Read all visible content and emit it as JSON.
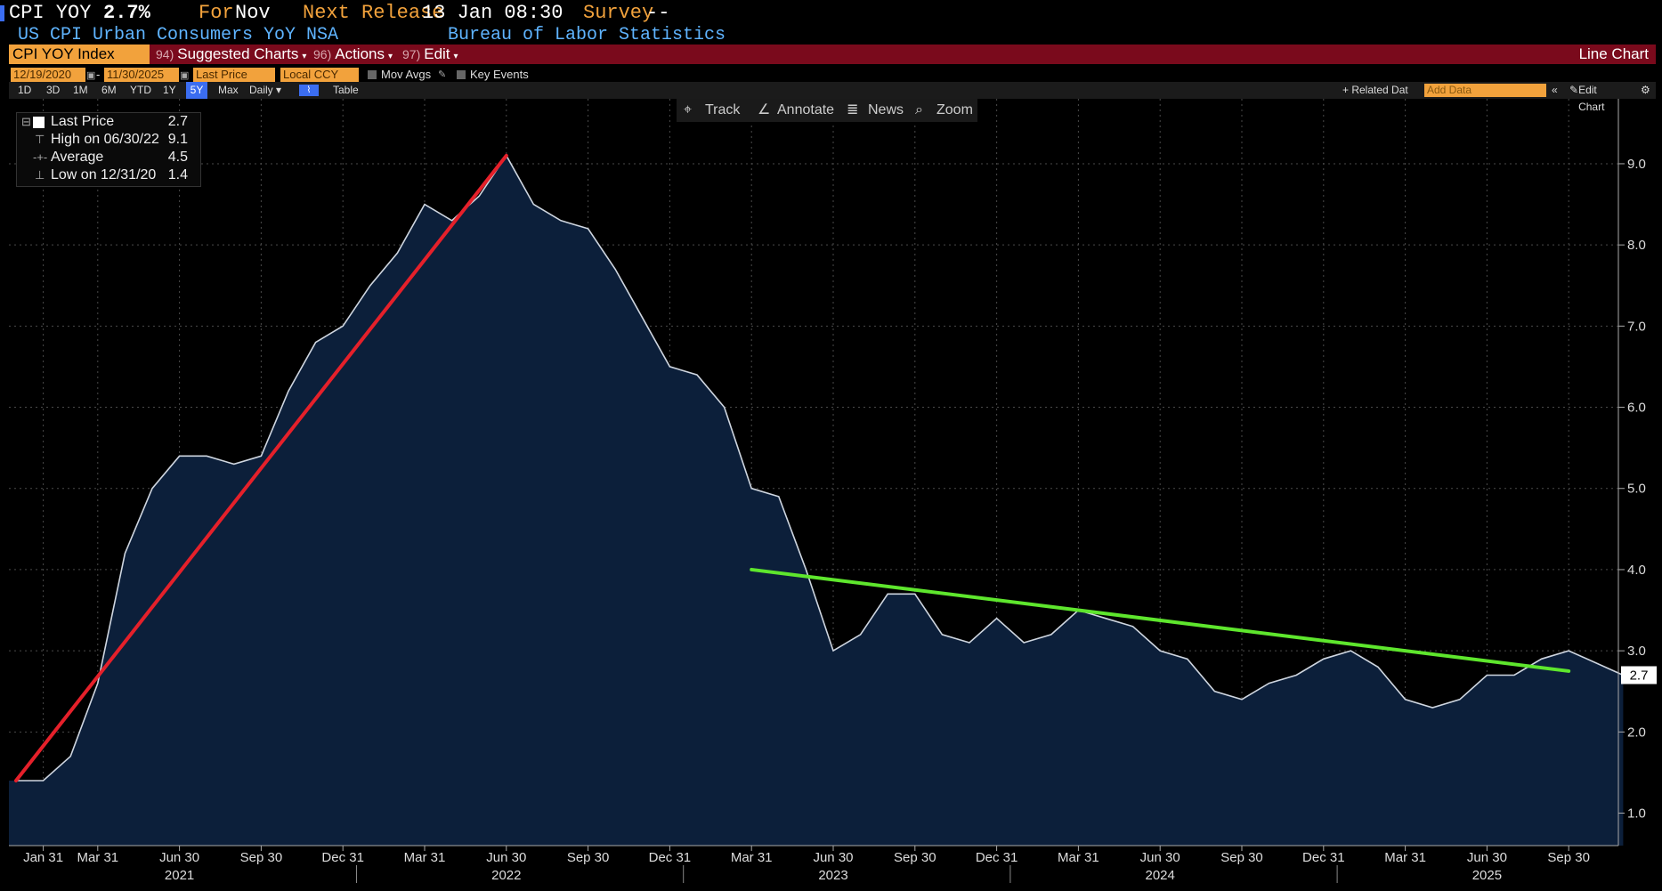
{
  "header": {
    "ticker": "CPI YOY",
    "value": "2.7%",
    "for_label": "For",
    "for_value": "Nov",
    "next_release_label": "Next Release",
    "next_release_value": "13 Jan 08:30",
    "survey_label": "Survey",
    "survey_value": "--",
    "subtitle": "US CPI Urban Consumers YoY NSA",
    "source": "Bureau of Labor Statistics"
  },
  "menu": {
    "ticker_field": "CPI YOY Index",
    "suggested_num": "94)",
    "suggested": "Suggested Charts",
    "actions_num": "96)",
    "actions": "Actions",
    "edit_num": "97)",
    "edit": "Edit",
    "chart_type": "Line Chart"
  },
  "controls": {
    "start_date": "12/19/2020",
    "end_date": "11/30/2025",
    "price_field": "Last Price",
    "currency": "Local CCY",
    "mov_avgs": "Mov Avgs",
    "key_events": "Key Events",
    "related_data": "+ Related Dat",
    "add_data_placeholder": "Add Data",
    "edit_chart": "Edit Chart"
  },
  "ranges": [
    "1D",
    "3D",
    "1M",
    "6M",
    "YTD",
    "1Y",
    "5Y",
    "Max",
    "Daily ▾",
    "Table"
  ],
  "toolbar": {
    "track": "Track",
    "annotate": "Annotate",
    "news": "News",
    "zoom": "Zoom"
  },
  "legend": {
    "last_label": "Last Price",
    "last_value": "2.7",
    "high_label": "High on 06/30/22",
    "high_value": "9.1",
    "avg_label": "Average",
    "avg_value": "4.5",
    "low_label": "Low on 12/31/20",
    "low_value": "1.4"
  },
  "colors": {
    "area_fill": "#0c1f3a",
    "line": "#cfd6e0",
    "red_trend": "#e5202a",
    "green_trend": "#5ee62d",
    "menu_bar": "#7a0a1c",
    "accent_orange": "#f2a23c"
  },
  "chart_data": {
    "type": "area",
    "y_axis_position": "right",
    "ylim": [
      0.6,
      9.8
    ],
    "y_ticks": [
      1.0,
      2.0,
      3.0,
      4.0,
      5.0,
      6.0,
      7.0,
      8.0,
      9.0
    ],
    "y_tick_labels": [
      "1.0",
      "2.0",
      "3.0",
      "4.0",
      "5.0",
      "6.0",
      "7.0",
      "8.0",
      "9.0"
    ],
    "x_tick_labels": [
      "Jan 31",
      "Mar 31",
      "Jun 30",
      "Sep 30",
      "Dec 31",
      "Mar 31",
      "Jun 30",
      "Sep 30",
      "Dec 31",
      "Mar 31",
      "Jun 30",
      "Sep 30",
      "Dec 31",
      "Mar 31",
      "Jun 30",
      "Sep 30",
      "Dec 31",
      "Mar 31",
      "Jun 30",
      "Sep 30"
    ],
    "x_tick_dates": [
      "2021-01",
      "2021-03",
      "2021-06",
      "2021-09",
      "2021-12",
      "2022-03",
      "2022-06",
      "2022-09",
      "2022-12",
      "2023-03",
      "2023-06",
      "2023-09",
      "2023-12",
      "2024-03",
      "2024-06",
      "2024-09",
      "2024-12",
      "2025-03",
      "2025-06",
      "2025-09"
    ],
    "year_labels": [
      "2021",
      "2022",
      "2023",
      "2024",
      "2025"
    ],
    "year_label_dates": [
      "2021-06",
      "2022-06",
      "2023-06",
      "2024-06",
      "2025-06"
    ],
    "last_value_label": "2.7",
    "grid": true,
    "series": [
      {
        "x": [
          "2020-12",
          "2021-01",
          "2021-02",
          "2021-03",
          "2021-04",
          "2021-05",
          "2021-06",
          "2021-07",
          "2021-08",
          "2021-09",
          "2021-10",
          "2021-11",
          "2021-12",
          "2022-01",
          "2022-02",
          "2022-03",
          "2022-04",
          "2022-05",
          "2022-06",
          "2022-07",
          "2022-08",
          "2022-09",
          "2022-10",
          "2022-11",
          "2022-12",
          "2023-01",
          "2023-02",
          "2023-03",
          "2023-04",
          "2023-05",
          "2023-06",
          "2023-07",
          "2023-08",
          "2023-09",
          "2023-10",
          "2023-11",
          "2023-12",
          "2024-01",
          "2024-02",
          "2024-03",
          "2024-04",
          "2024-05",
          "2024-06",
          "2024-07",
          "2024-08",
          "2024-09",
          "2024-10",
          "2024-11",
          "2024-12",
          "2025-01",
          "2025-02",
          "2025-03",
          "2025-04",
          "2025-05",
          "2025-06",
          "2025-07",
          "2025-08",
          "2025-09",
          "2025-10",
          "2025-11"
        ],
        "values": [
          1.4,
          1.4,
          1.7,
          2.6,
          4.2,
          5.0,
          5.4,
          5.4,
          5.3,
          5.4,
          6.2,
          6.8,
          7.0,
          7.5,
          7.9,
          8.5,
          8.3,
          8.6,
          9.1,
          8.5,
          8.3,
          8.2,
          7.7,
          7.1,
          6.5,
          6.4,
          6.0,
          5.0,
          4.9,
          4.0,
          3.0,
          3.2,
          3.7,
          3.7,
          3.2,
          3.1,
          3.4,
          3.1,
          3.2,
          3.5,
          3.4,
          3.3,
          3.0,
          2.9,
          2.5,
          2.4,
          2.6,
          2.7,
          2.9,
          3.0,
          2.8,
          2.4,
          2.3,
          2.4,
          2.7,
          2.7,
          2.9,
          3.0,
          null,
          2.7
        ]
      }
    ],
    "trend_lines": [
      {
        "color": "red",
        "from": [
          "2020-12",
          1.4
        ],
        "to": [
          "2022-06",
          9.1
        ]
      },
      {
        "color": "green",
        "from": [
          "2023-03",
          4.0
        ],
        "to": [
          "2025-09",
          2.75
        ]
      }
    ]
  }
}
